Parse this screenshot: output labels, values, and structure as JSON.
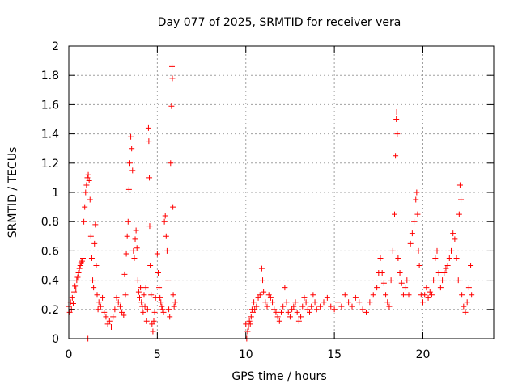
{
  "chart_data": {
    "type": "scatter",
    "title": "Day 077 of 2025, SRMTID for receiver vera",
    "xlabel": "GPS time / hours",
    "ylabel": "SRMTID / TECUs",
    "xlim": [
      0,
      24
    ],
    "ylim": [
      0,
      2
    ],
    "xticks": [
      0,
      5,
      10,
      15,
      20
    ],
    "xtick_labels": [
      "0",
      "5",
      "10",
      "15",
      "20"
    ],
    "yticks": [
      0,
      0.2,
      0.4,
      0.6,
      0.8,
      1,
      1.2,
      1.4,
      1.6,
      1.8,
      2
    ],
    "ytick_labels": [
      "0",
      "0.2",
      "0.4",
      "0.6",
      "0.8",
      "1",
      "1.2",
      "1.4",
      "1.6",
      "1.8",
      "2"
    ],
    "grid": true,
    "marker": "+",
    "color": "#ff0000",
    "series": [
      {
        "name": "SRMTID",
        "points": [
          [
            0.0,
            0.22
          ],
          [
            0.05,
            0.18
          ],
          [
            0.1,
            0.25
          ],
          [
            0.15,
            0.2
          ],
          [
            0.2,
            0.28
          ],
          [
            0.25,
            0.24
          ],
          [
            0.3,
            0.32
          ],
          [
            0.35,
            0.36
          ],
          [
            0.4,
            0.34
          ],
          [
            0.45,
            0.4
          ],
          [
            0.5,
            0.42
          ],
          [
            0.55,
            0.45
          ],
          [
            0.6,
            0.48
          ],
          [
            0.65,
            0.5
          ],
          [
            0.7,
            0.52
          ],
          [
            0.75,
            0.53
          ],
          [
            0.8,
            0.55
          ],
          [
            0.85,
            0.8
          ],
          [
            0.9,
            0.9
          ],
          [
            0.95,
            1.0
          ],
          [
            1.0,
            1.05
          ],
          [
            1.05,
            1.1
          ],
          [
            1.08,
            0.0
          ],
          [
            1.1,
            1.12
          ],
          [
            1.15,
            1.08
          ],
          [
            1.2,
            0.95
          ],
          [
            1.25,
            0.7
          ],
          [
            1.3,
            0.55
          ],
          [
            1.35,
            0.4
          ],
          [
            1.4,
            0.35
          ],
          [
            1.45,
            0.65
          ],
          [
            1.5,
            0.78
          ],
          [
            1.55,
            0.5
          ],
          [
            1.6,
            0.3
          ],
          [
            1.65,
            0.2
          ],
          [
            1.7,
            0.25
          ],
          [
            1.8,
            0.22
          ],
          [
            1.9,
            0.28
          ],
          [
            2.0,
            0.18
          ],
          [
            2.1,
            0.15
          ],
          [
            2.2,
            0.1
          ],
          [
            2.3,
            0.12
          ],
          [
            2.4,
            0.08
          ],
          [
            2.5,
            0.15
          ],
          [
            2.6,
            0.2
          ],
          [
            2.7,
            0.28
          ],
          [
            2.8,
            0.25
          ],
          [
            2.9,
            0.22
          ],
          [
            3.0,
            0.18
          ],
          [
            3.1,
            0.16
          ],
          [
            3.15,
            0.44
          ],
          [
            3.2,
            0.3
          ],
          [
            3.25,
            0.58
          ],
          [
            3.3,
            0.7
          ],
          [
            3.35,
            0.8
          ],
          [
            3.4,
            1.02
          ],
          [
            3.45,
            1.2
          ],
          [
            3.5,
            1.38
          ],
          [
            3.55,
            1.3
          ],
          [
            3.6,
            1.15
          ],
          [
            3.65,
            0.6
          ],
          [
            3.7,
            0.55
          ],
          [
            3.75,
            0.68
          ],
          [
            3.8,
            0.74
          ],
          [
            3.85,
            0.62
          ],
          [
            3.9,
            0.4
          ],
          [
            3.95,
            0.32
          ],
          [
            4.0,
            0.28
          ],
          [
            4.05,
            0.35
          ],
          [
            4.1,
            0.25
          ],
          [
            4.15,
            0.22
          ],
          [
            4.2,
            0.18
          ],
          [
            4.25,
            0.3
          ],
          [
            4.3,
            0.22
          ],
          [
            4.35,
            0.35
          ],
          [
            4.4,
            0.12
          ],
          [
            4.45,
            0.2
          ],
          [
            4.5,
            1.44
          ],
          [
            4.52,
            1.35
          ],
          [
            4.55,
            1.1
          ],
          [
            4.57,
            0.77
          ],
          [
            4.6,
            0.5
          ],
          [
            4.65,
            0.3
          ],
          [
            4.7,
            0.1
          ],
          [
            4.75,
            0.05
          ],
          [
            4.8,
            0.12
          ],
          [
            4.85,
            0.18
          ],
          [
            4.9,
            0.28
          ],
          [
            5.0,
            0.58
          ],
          [
            5.05,
            0.45
          ],
          [
            5.1,
            0.35
          ],
          [
            5.15,
            0.28
          ],
          [
            5.2,
            0.25
          ],
          [
            5.25,
            0.22
          ],
          [
            5.3,
            0.2
          ],
          [
            5.35,
            0.18
          ],
          [
            5.4,
            0.8
          ],
          [
            5.45,
            0.84
          ],
          [
            5.5,
            0.7
          ],
          [
            5.55,
            0.6
          ],
          [
            5.6,
            0.4
          ],
          [
            5.65,
            0.2
          ],
          [
            5.7,
            0.15
          ],
          [
            5.75,
            1.2
          ],
          [
            5.8,
            1.59
          ],
          [
            5.83,
            1.86
          ],
          [
            5.85,
            1.78
          ],
          [
            5.88,
            0.9
          ],
          [
            5.9,
            0.3
          ],
          [
            5.95,
            0.22
          ],
          [
            6.0,
            0.25
          ],
          [
            10.0,
            0.1
          ],
          [
            10.05,
            0.0
          ],
          [
            10.1,
            0.05
          ],
          [
            10.15,
            0.08
          ],
          [
            10.2,
            0.12
          ],
          [
            10.25,
            0.1
          ],
          [
            10.3,
            0.15
          ],
          [
            10.35,
            0.2
          ],
          [
            10.4,
            0.18
          ],
          [
            10.45,
            0.25
          ],
          [
            10.5,
            0.2
          ],
          [
            10.6,
            0.22
          ],
          [
            10.7,
            0.28
          ],
          [
            10.8,
            0.3
          ],
          [
            10.9,
            0.48
          ],
          [
            10.95,
            0.4
          ],
          [
            11.0,
            0.32
          ],
          [
            11.1,
            0.25
          ],
          [
            11.2,
            0.22
          ],
          [
            11.3,
            0.3
          ],
          [
            11.4,
            0.28
          ],
          [
            11.5,
            0.25
          ],
          [
            11.6,
            0.2
          ],
          [
            11.7,
            0.18
          ],
          [
            11.8,
            0.15
          ],
          [
            11.9,
            0.12
          ],
          [
            12.0,
            0.18
          ],
          [
            12.1,
            0.22
          ],
          [
            12.2,
            0.35
          ],
          [
            12.3,
            0.25
          ],
          [
            12.4,
            0.18
          ],
          [
            12.5,
            0.15
          ],
          [
            12.6,
            0.2
          ],
          [
            12.7,
            0.22
          ],
          [
            12.8,
            0.25
          ],
          [
            12.9,
            0.18
          ],
          [
            13.0,
            0.12
          ],
          [
            13.1,
            0.15
          ],
          [
            13.2,
            0.22
          ],
          [
            13.3,
            0.28
          ],
          [
            13.4,
            0.25
          ],
          [
            13.5,
            0.2
          ],
          [
            13.6,
            0.18
          ],
          [
            13.7,
            0.22
          ],
          [
            13.8,
            0.3
          ],
          [
            13.9,
            0.25
          ],
          [
            14.0,
            0.2
          ],
          [
            14.2,
            0.22
          ],
          [
            14.4,
            0.25
          ],
          [
            14.6,
            0.28
          ],
          [
            14.8,
            0.22
          ],
          [
            15.0,
            0.2
          ],
          [
            15.2,
            0.25
          ],
          [
            15.4,
            0.22
          ],
          [
            15.6,
            0.3
          ],
          [
            15.8,
            0.25
          ],
          [
            16.0,
            0.22
          ],
          [
            16.2,
            0.28
          ],
          [
            16.4,
            0.25
          ],
          [
            16.6,
            0.2
          ],
          [
            16.8,
            0.18
          ],
          [
            17.0,
            0.25
          ],
          [
            17.2,
            0.3
          ],
          [
            17.4,
            0.35
          ],
          [
            17.5,
            0.45
          ],
          [
            17.6,
            0.55
          ],
          [
            17.7,
            0.45
          ],
          [
            17.8,
            0.38
          ],
          [
            17.9,
            0.3
          ],
          [
            18.0,
            0.25
          ],
          [
            18.1,
            0.22
          ],
          [
            18.2,
            0.4
          ],
          [
            18.3,
            0.6
          ],
          [
            18.4,
            0.85
          ],
          [
            18.45,
            1.25
          ],
          [
            18.5,
            1.5
          ],
          [
            18.52,
            1.55
          ],
          [
            18.55,
            1.4
          ],
          [
            18.6,
            0.55
          ],
          [
            18.7,
            0.45
          ],
          [
            18.8,
            0.38
          ],
          [
            18.9,
            0.3
          ],
          [
            19.0,
            0.35
          ],
          [
            19.1,
            0.4
          ],
          [
            19.2,
            0.3
          ],
          [
            19.3,
            0.65
          ],
          [
            19.4,
            0.72
          ],
          [
            19.5,
            0.8
          ],
          [
            19.6,
            0.95
          ],
          [
            19.65,
            1.0
          ],
          [
            19.7,
            0.85
          ],
          [
            19.75,
            0.6
          ],
          [
            19.8,
            0.5
          ],
          [
            19.9,
            0.3
          ],
          [
            20.0,
            0.25
          ],
          [
            20.1,
            0.3
          ],
          [
            20.2,
            0.35
          ],
          [
            20.3,
            0.28
          ],
          [
            20.4,
            0.32
          ],
          [
            20.5,
            0.3
          ],
          [
            20.6,
            0.4
          ],
          [
            20.7,
            0.55
          ],
          [
            20.8,
            0.6
          ],
          [
            20.9,
            0.45
          ],
          [
            21.0,
            0.35
          ],
          [
            21.1,
            0.4
          ],
          [
            21.2,
            0.45
          ],
          [
            21.3,
            0.48
          ],
          [
            21.4,
            0.5
          ],
          [
            21.5,
            0.55
          ],
          [
            21.6,
            0.6
          ],
          [
            21.7,
            0.72
          ],
          [
            21.8,
            0.68
          ],
          [
            21.9,
            0.55
          ],
          [
            22.0,
            0.4
          ],
          [
            22.05,
            0.85
          ],
          [
            22.1,
            1.05
          ],
          [
            22.15,
            0.95
          ],
          [
            22.2,
            0.3
          ],
          [
            22.3,
            0.22
          ],
          [
            22.4,
            0.18
          ],
          [
            22.5,
            0.25
          ],
          [
            22.6,
            0.35
          ],
          [
            22.7,
            0.5
          ],
          [
            22.75,
            0.3
          ]
        ]
      }
    ]
  }
}
